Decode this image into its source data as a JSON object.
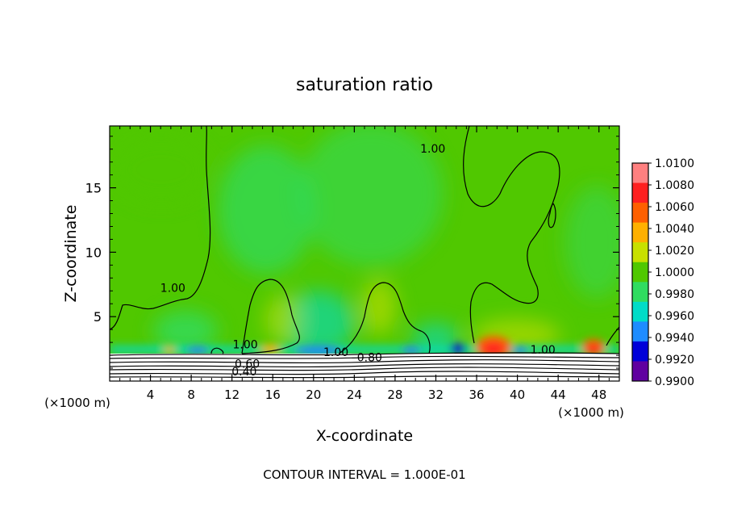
{
  "chart_data": {
    "type": "heatmap",
    "title": "saturation ratio",
    "xlabel": "X-coordinate",
    "ylabel": "Z-coordinate",
    "x_unit_left": "(×1000 m)",
    "x_unit_right": "(×1000 m)",
    "xlim": [
      0,
      50
    ],
    "ylim": [
      0,
      19.8
    ],
    "x_ticks": [
      4,
      8,
      12,
      16,
      20,
      24,
      28,
      32,
      36,
      40,
      44,
      48
    ],
    "y_ticks": [
      5,
      10,
      15
    ],
    "colorbar": {
      "levels": [
        "1.0100",
        "1.0080",
        "1.0060",
        "1.0040",
        "1.0020",
        "1.0000",
        "0.9980",
        "0.9960",
        "0.9940",
        "0.9920",
        "0.9900"
      ],
      "colors": [
        "#ff8080",
        "#ff2020",
        "#ff6000",
        "#ffb000",
        "#c8e000",
        "#50c800",
        "#30dc60",
        "#00dcc8",
        "#1e8cff",
        "#0000d8",
        "#6000a0"
      ]
    },
    "contour_labels": [
      {
        "text": "1.00",
        "x": 6.2,
        "y": 7.0
      },
      {
        "text": "1.00",
        "x": 13.3,
        "y": 2.6
      },
      {
        "text": "1.00",
        "x": 22.2,
        "y": 2.0
      },
      {
        "text": "1.00",
        "x": 31.7,
        "y": 17.8
      },
      {
        "text": "1.00",
        "x": 42.5,
        "y": 2.2
      },
      {
        "text": "0.80",
        "x": 25.5,
        "y": 1.6
      },
      {
        "text": "0.60",
        "x": 13.5,
        "y": 1.1
      },
      {
        "text": "0.40",
        "x": 13.2,
        "y": 0.5
      }
    ],
    "grid": false,
    "legend": "right"
  },
  "footer": {
    "contour_interval": "CONTOUR INTERVAL = 1.000E-01"
  }
}
